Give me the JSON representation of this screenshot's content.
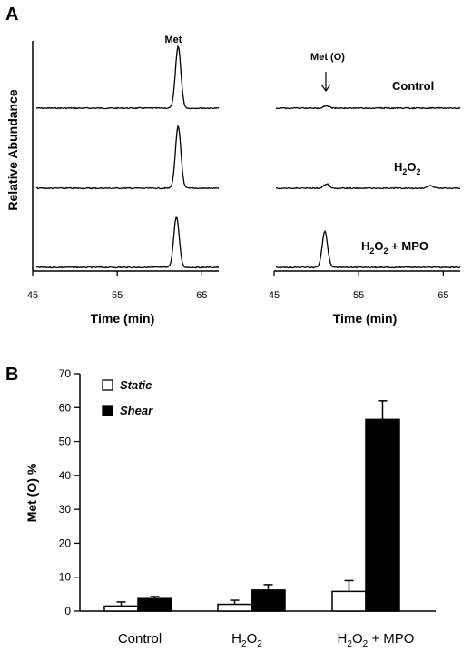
{
  "panel_a": {
    "letter": "A",
    "ylabel": "Relative Abundance",
    "left": {
      "peak_label": "Met",
      "xlabel": "Time (min)",
      "ticks": [
        45,
        55,
        65
      ]
    },
    "right": {
      "peak_label": "Met (O)",
      "xlabel": "Time (min)",
      "ticks": [
        45,
        55,
        65
      ]
    },
    "conditions": [
      {
        "label": "Control"
      },
      {
        "label_main": "H",
        "label_sub1": "2",
        "label_mid": "O",
        "label_sub2": "2",
        "label_tail": ""
      },
      {
        "label_main": "H",
        "label_sub1": "2",
        "label_mid": "O",
        "label_sub2": "2",
        "label_tail": " + MPO"
      }
    ]
  },
  "panel_b": {
    "letter": "B",
    "legend": [
      {
        "label": "Static",
        "color": "#ffffff"
      },
      {
        "label": "Shear",
        "color": "#000000"
      }
    ]
  },
  "chart_data": [
    {
      "type": "line",
      "panel": "A-left",
      "xlabel": "Time (min)",
      "ylabel": "Relative Abundance",
      "xlim": [
        45,
        67
      ],
      "x_ticks": [
        45,
        55,
        65
      ],
      "series": [
        {
          "peaks": [
            {
              "x": 62.2,
              "height": 1.0
            }
          ]
        },
        {
          "peaks": [
            {
              "x": 62.2,
              "height": 1.0
            }
          ]
        },
        {
          "peaks": [
            {
              "x": 62.0,
              "height": 0.82
            }
          ]
        }
      ]
    },
    {
      "type": "line",
      "panel": "A-right",
      "xlabel": "Time (min)",
      "xlim": [
        45,
        67
      ],
      "x_ticks": [
        45,
        55,
        65
      ],
      "series": [
        {
          "peaks": [
            {
              "x": 51.2,
              "height": 0.04
            }
          ]
        },
        {
          "peaks": [
            {
              "x": 51.2,
              "height": 0.07
            },
            {
              "x": 63.5,
              "height": 0.04
            }
          ]
        },
        {
          "peaks": [
            {
              "x": 51.0,
              "height": 0.58
            }
          ]
        }
      ]
    },
    {
      "type": "bar",
      "panel": "B",
      "ylabel": "Met (O) %",
      "ylim": [
        0,
        70
      ],
      "y_ticks": [
        0,
        10,
        20,
        30,
        40,
        50,
        60,
        70
      ],
      "categories": [
        {
          "label": "Control"
        },
        {
          "label_main": "H",
          "label_sub1": "2",
          "label_mid": "O",
          "label_sub2": "2",
          "label_tail": ""
        },
        {
          "label_main": "H",
          "label_sub1": "2",
          "label_mid": "O",
          "label_sub2": "2",
          "label_tail": " + MPO"
        }
      ],
      "series": [
        {
          "name": "Static",
          "values": [
            1.5,
            2.0,
            5.8
          ],
          "errors": [
            1.2,
            1.2,
            3.2
          ]
        },
        {
          "name": "Shear",
          "values": [
            3.7,
            6.2,
            56.5
          ],
          "errors": [
            0.6,
            1.6,
            5.5
          ]
        }
      ]
    }
  ]
}
